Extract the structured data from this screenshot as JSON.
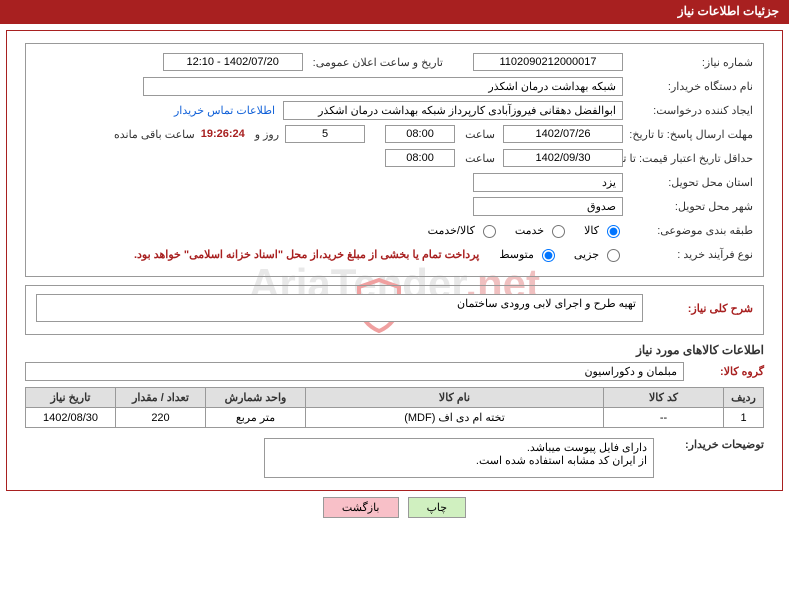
{
  "header": {
    "title": "جزئیات اطلاعات نیاز"
  },
  "fields": {
    "need_number_label": "شماره نیاز:",
    "need_number": "1102090212000017",
    "announce_label": "تاریخ و ساعت اعلان عمومی:",
    "announce_value": "1402/07/20 - 12:10",
    "buyer_org_label": "نام دستگاه خریدار:",
    "buyer_org": "شبکه بهداشت درمان اشکذر",
    "requester_label": "ایجاد کننده درخواست:",
    "requester": "ابوالفضل دهقانی فیروزآبادی کارپرداز شبکه بهداشت درمان اشکذر",
    "contact_link": "اطلاعات تماس خریدار",
    "deadline_label": "مهلت ارسال پاسخ: تا تاریخ:",
    "deadline_date": "1402/07/26",
    "time_label": "ساعت",
    "deadline_time": "08:00",
    "days_count": "5",
    "days_suffix": "روز و",
    "countdown": "19:26:24",
    "remaining": "ساعت باقی مانده",
    "validity_label": "حداقل تاریخ اعتبار قیمت: تا تاریخ:",
    "validity_date": "1402/09/30",
    "validity_time": "08:00",
    "province_label": "استان محل تحویل:",
    "province": "یزد",
    "city_label": "شهر محل تحویل:",
    "city": "صدوق",
    "category_label": "طبقه بندی موضوعی:",
    "cat_goods": "کالا",
    "cat_service": "خدمت",
    "cat_both": "کالا/خدمت",
    "process_label": "نوع فرآیند خرید :",
    "proc_partial": "جزیی",
    "proc_medium": "متوسط",
    "payment_note": "پرداخت تمام یا بخشی از مبلغ خرید،از محل \"اسناد خزانه اسلامی\" خواهد بود."
  },
  "description": {
    "label": "شرح کلی نیاز:",
    "text": "تهیه طرح و اجرای لابی ورودی ساختمان"
  },
  "goods_section": {
    "title": "اطلاعات کالاهای مورد نیاز",
    "group_label": "گروه کالا:",
    "group": "مبلمان و دکوراسیون"
  },
  "table": {
    "headers": {
      "row": "ردیف",
      "code": "کد کالا",
      "name": "نام کالا",
      "unit": "واحد شمارش",
      "qty": "تعداد / مقدار",
      "date": "تاریخ نیاز"
    },
    "rows": [
      {
        "row": "1",
        "code": "--",
        "name": "تخته ام دی اف (MDF)",
        "unit": "متر مربع",
        "qty": "220",
        "date": "1402/08/30"
      }
    ]
  },
  "buyer_notes": {
    "label": "توضیحات خریدار:",
    "line1": "دارای فایل پیوست میباشد.",
    "line2": "از ایران کد مشابه استفاده شده است."
  },
  "buttons": {
    "print": "چاپ",
    "back": "بازگشت"
  },
  "colors": {
    "accent": "#a82020",
    "border": "#999999",
    "header_bg": "#e0e0e0",
    "link": "#1060d8"
  }
}
